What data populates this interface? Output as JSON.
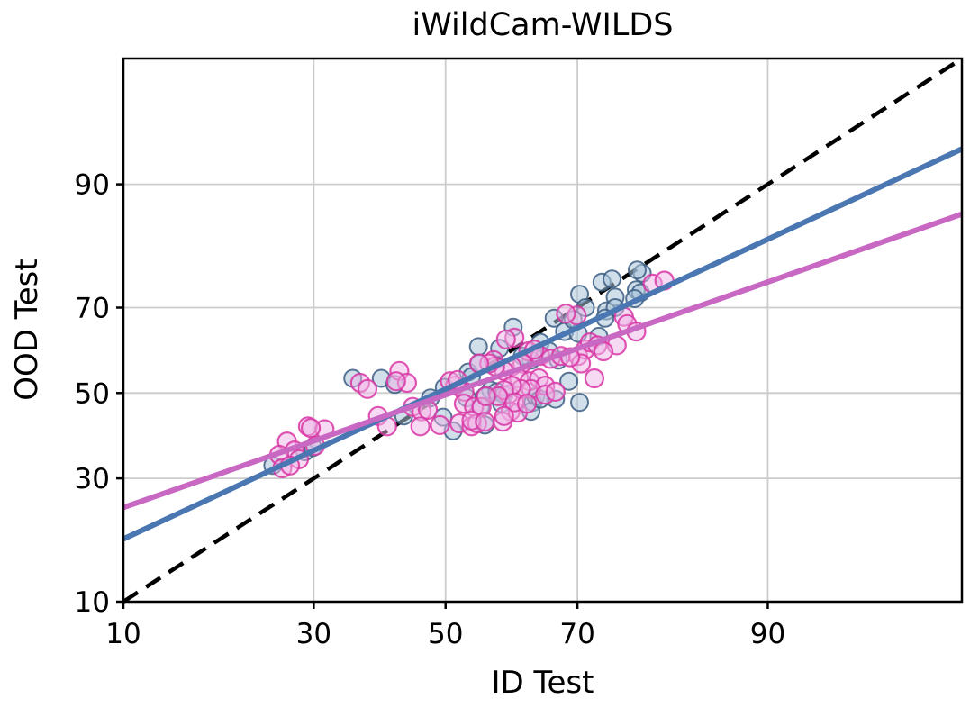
{
  "chart_data": {
    "type": "scatter",
    "title": "iWildCam-WILDS",
    "xlabel": "ID Test",
    "ylabel": "OOD Test",
    "scale": "probit",
    "xlim": [
      10,
      98
    ],
    "ylim": [
      10,
      98
    ],
    "xticks": [
      10,
      30,
      50,
      70,
      90
    ],
    "yticks": [
      10,
      30,
      50,
      70,
      90
    ],
    "grid": true,
    "legend_position": "none",
    "colors": {
      "grid": "#cccccc",
      "spine": "#000000",
      "reference": "#000000",
      "blue_line": "#4a76b2",
      "pink_line": "#c868c2",
      "blue_marker_fill": "#a9c4d8",
      "blue_marker_edge": "#3c5d82",
      "pink_marker_fill": "#eeb3e6",
      "pink_marker_edge": "#d836a4"
    },
    "reference_line": {
      "style": "dashed",
      "from": [
        10,
        10
      ],
      "to": [
        98,
        98
      ]
    },
    "trend_lines": [
      {
        "series": "blue-models",
        "color_key": "blue_line",
        "from": [
          10,
          18.5
        ],
        "to": [
          98,
          93.3
        ]
      },
      {
        "series": "pink-models",
        "color_key": "pink_line",
        "from": [
          10,
          24.1
        ],
        "to": [
          98,
          86.4
        ]
      }
    ],
    "series": [
      {
        "id": "blue-models",
        "marker": "circle",
        "fill_key": "blue_marker_fill",
        "edge_key": "blue_marker_edge",
        "points": [
          [
            35.6,
            53.6
          ],
          [
            39.9,
            53.6
          ],
          [
            42.0,
            52.1
          ],
          [
            47.6,
            48.8
          ],
          [
            43.4,
            44.4
          ],
          [
            49.6,
            44.1
          ],
          [
            51.2,
            40.8
          ],
          [
            55.2,
            61.2
          ],
          [
            53.6,
            55.1
          ],
          [
            60.6,
            65.7
          ],
          [
            58.5,
            60.8
          ],
          [
            54.1,
            54.0
          ],
          [
            55.3,
            57.2
          ],
          [
            57.1,
            50.7
          ],
          [
            55.5,
            46.6
          ],
          [
            56.2,
            49.2
          ],
          [
            58.1,
            50.3
          ],
          [
            56.2,
            42.2
          ],
          [
            59.2,
            49.6
          ],
          [
            63.6,
            47.7
          ],
          [
            64.0,
            49.2
          ],
          [
            66.9,
            48.5
          ],
          [
            70.3,
            47.7
          ],
          [
            64.7,
            62.2
          ],
          [
            66.0,
            60.1
          ],
          [
            63.3,
            58.0
          ],
          [
            62.0,
            59.0
          ],
          [
            67.3,
            58.0
          ],
          [
            68.8,
            52.9
          ],
          [
            66.7,
            67.7
          ],
          [
            68.2,
            64.7
          ],
          [
            70.1,
            64.3
          ],
          [
            69.4,
            67.4
          ],
          [
            70.3,
            72.8
          ],
          [
            71.1,
            70.0
          ],
          [
            73.3,
            75.2
          ],
          [
            74.6,
            75.8
          ],
          [
            75.0,
            72.2
          ],
          [
            73.9,
            69.3
          ],
          [
            75.0,
            70.0
          ],
          [
            73.7,
            67.7
          ],
          [
            72.9,
            63.6
          ],
          [
            78.3,
            76.9
          ],
          [
            77.6,
            73.7
          ],
          [
            78.1,
            73.1
          ],
          [
            77.4,
            71.9
          ],
          [
            77.7,
            77.5
          ],
          [
            24.6,
            32.8
          ],
          [
            28.8,
            35.9
          ],
          [
            29.9,
            36.9
          ],
          [
            49.8,
            51.4
          ],
          [
            53.4,
            48.8
          ],
          [
            63.3,
            45.5
          ],
          [
            64.7,
            48.5
          ],
          [
            58.8,
            47.4
          ]
        ]
      },
      {
        "id": "pink-models",
        "marker": "circle",
        "fill_key": "pink_marker_fill",
        "edge_key": "pink_marker_edge",
        "points": [
          [
            36.7,
            52.5
          ],
          [
            37.8,
            51.0
          ],
          [
            42.7,
            55.4
          ],
          [
            43.9,
            52.5
          ],
          [
            42.2,
            52.9
          ],
          [
            39.4,
            44.4
          ],
          [
            40.8,
            41.9
          ],
          [
            44.8,
            46.6
          ],
          [
            46.2,
            45.5
          ],
          [
            47.2,
            45.9
          ],
          [
            46.0,
            41.9
          ],
          [
            49.1,
            42.2
          ],
          [
            52.2,
            42.6
          ],
          [
            54.1,
            41.9
          ],
          [
            51.5,
            51.8
          ],
          [
            53.0,
            50.3
          ],
          [
            52.9,
            47.4
          ],
          [
            54.5,
            46.6
          ],
          [
            57.6,
            58.0
          ],
          [
            59.9,
            49.6
          ],
          [
            60.2,
            45.5
          ],
          [
            59.0,
            43.0
          ],
          [
            61.3,
            45.2
          ],
          [
            29.2,
            41.9
          ],
          [
            31.5,
            41.2
          ],
          [
            26.4,
            38.3
          ],
          [
            27.4,
            36.2
          ],
          [
            25.4,
            35.2
          ],
          [
            25.8,
            32.2
          ],
          [
            29.6,
            41.5
          ],
          [
            30.2,
            37.3
          ],
          [
            28.0,
            34.2
          ],
          [
            26.8,
            32.8
          ],
          [
            69.9,
            68.3
          ],
          [
            68.4,
            68.7
          ],
          [
            60.8,
            63.3
          ],
          [
            59.5,
            62.9
          ],
          [
            62.9,
            60.1
          ],
          [
            64.7,
            59.0
          ],
          [
            63.8,
            60.5
          ],
          [
            66.2,
            58.3
          ],
          [
            67.7,
            59.0
          ],
          [
            70.1,
            59.0
          ],
          [
            71.1,
            60.5
          ],
          [
            71.7,
            62.2
          ],
          [
            72.7,
            61.5
          ],
          [
            70.5,
            57.2
          ],
          [
            69.0,
            58.7
          ],
          [
            62.0,
            57.2
          ],
          [
            60.4,
            56.5
          ],
          [
            59.2,
            55.4
          ],
          [
            57.8,
            56.5
          ],
          [
            61.5,
            53.6
          ],
          [
            63.1,
            52.9
          ],
          [
            64.5,
            53.6
          ],
          [
            65.4,
            51.8
          ],
          [
            63.3,
            51.0
          ],
          [
            61.8,
            51.0
          ],
          [
            60.4,
            51.8
          ],
          [
            59.2,
            50.7
          ],
          [
            58.3,
            49.2
          ],
          [
            60.8,
            47.7
          ],
          [
            62.7,
            47.4
          ],
          [
            65.4,
            49.6
          ],
          [
            66.9,
            50.3
          ],
          [
            72.3,
            53.6
          ],
          [
            59.2,
            44.4
          ],
          [
            55.7,
            46.6
          ],
          [
            55.0,
            42.6
          ],
          [
            54.1,
            43.3
          ],
          [
            56.4,
            49.2
          ],
          [
            56.2,
            43.0
          ],
          [
            76.1,
            68.0
          ],
          [
            76.5,
            66.4
          ],
          [
            77.6,
            64.7
          ],
          [
            75.2,
            61.5
          ],
          [
            73.5,
            60.1
          ],
          [
            79.5,
            74.9
          ],
          [
            80.8,
            75.5
          ],
          [
            56.9,
            57.2
          ],
          [
            55.3,
            57.2
          ],
          [
            50.7,
            52.9
          ],
          [
            51.9,
            53.2
          ]
        ]
      }
    ]
  }
}
